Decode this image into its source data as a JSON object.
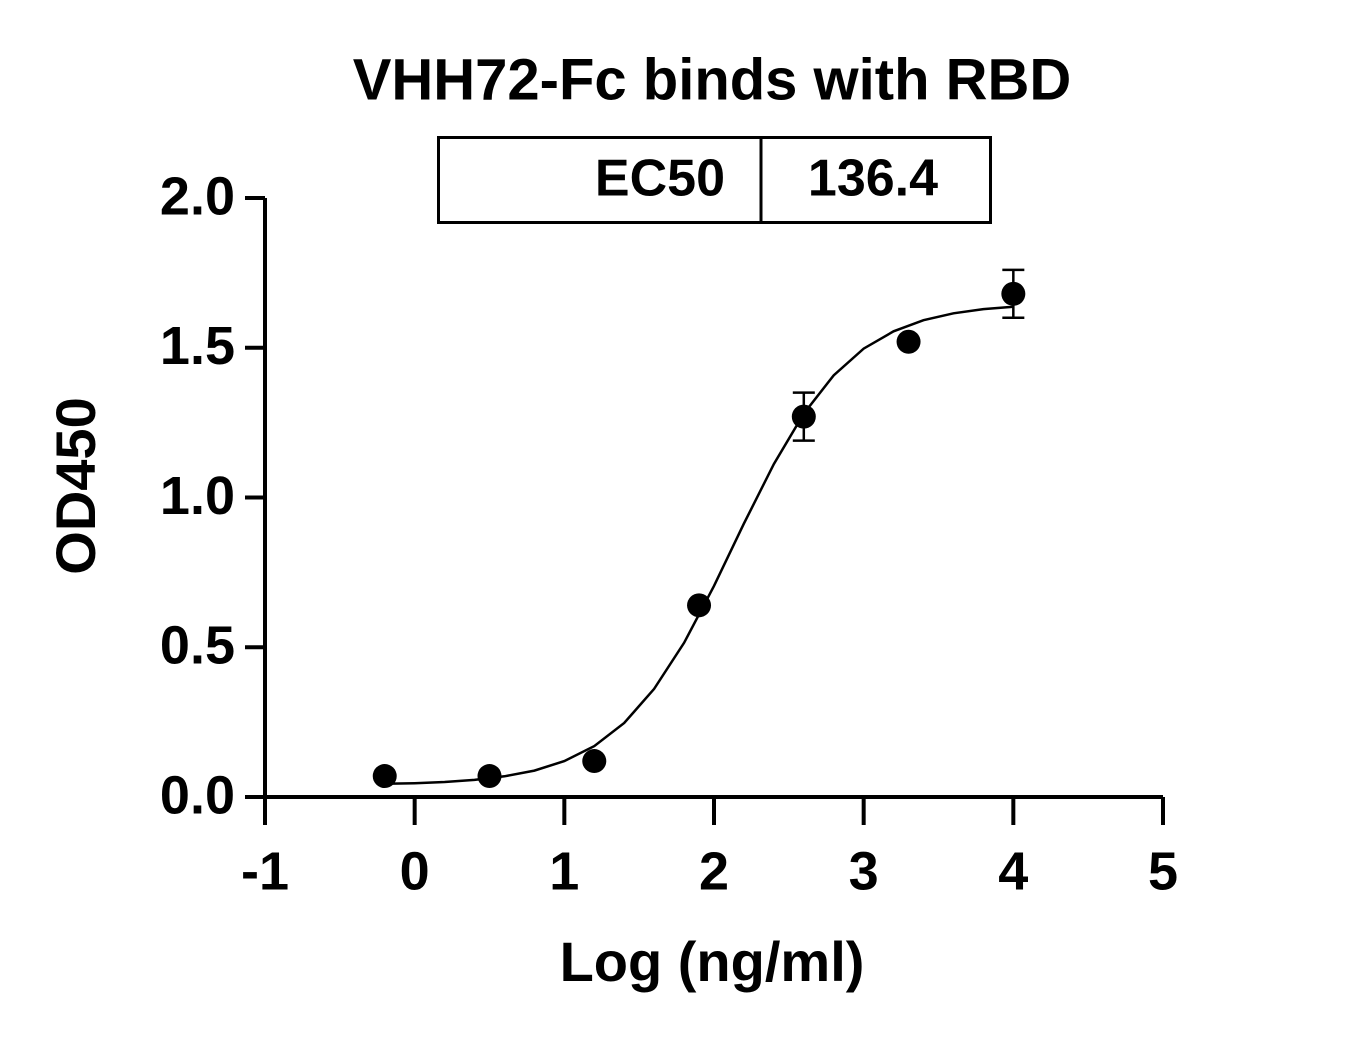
{
  "chart_data": {
    "type": "scatter",
    "title": "VHH72-Fc binds with RBD",
    "table": {
      "label": "EC50",
      "value": 136.4
    },
    "x_label": "Log (ng/ml)",
    "y_label": "OD450",
    "color": "#000000",
    "points": {
      "x": [
        -0.2,
        0.5,
        1.2,
        1.9,
        2.6,
        3.3,
        4.0
      ],
      "values": [
        0.07,
        0.07,
        0.12,
        0.64,
        1.27,
        1.52,
        1.68
      ],
      "errors": [
        null,
        null,
        null,
        null,
        0.08,
        null,
        0.08
      ]
    },
    "fit": {
      "x": [
        -0.2,
        0,
        0.2,
        0.4,
        0.6,
        0.8,
        1.0,
        1.2,
        1.4,
        1.6,
        1.8,
        2.0,
        2.2,
        2.4,
        2.6,
        2.8,
        3.0,
        3.2,
        3.4,
        3.6,
        3.8,
        4.0
      ],
      "values": [
        0.044,
        0.046,
        0.05,
        0.057,
        0.069,
        0.088,
        0.12,
        0.17,
        0.247,
        0.361,
        0.515,
        0.705,
        0.913,
        1.112,
        1.28,
        1.408,
        1.497,
        1.555,
        1.592,
        1.615,
        1.629,
        1.637
      ]
    },
    "xlim": [
      -1,
      5
    ],
    "xticks": [
      -1,
      0,
      1,
      2,
      3,
      4,
      5
    ],
    "ylim": [
      0,
      2
    ],
    "yticks": [
      {
        "value": 0,
        "label": "0.0"
      },
      0.5,
      {
        "value": 1,
        "label": "1.0"
      },
      1.5,
      {
        "value": 2,
        "label": "2.0"
      }
    ]
  }
}
